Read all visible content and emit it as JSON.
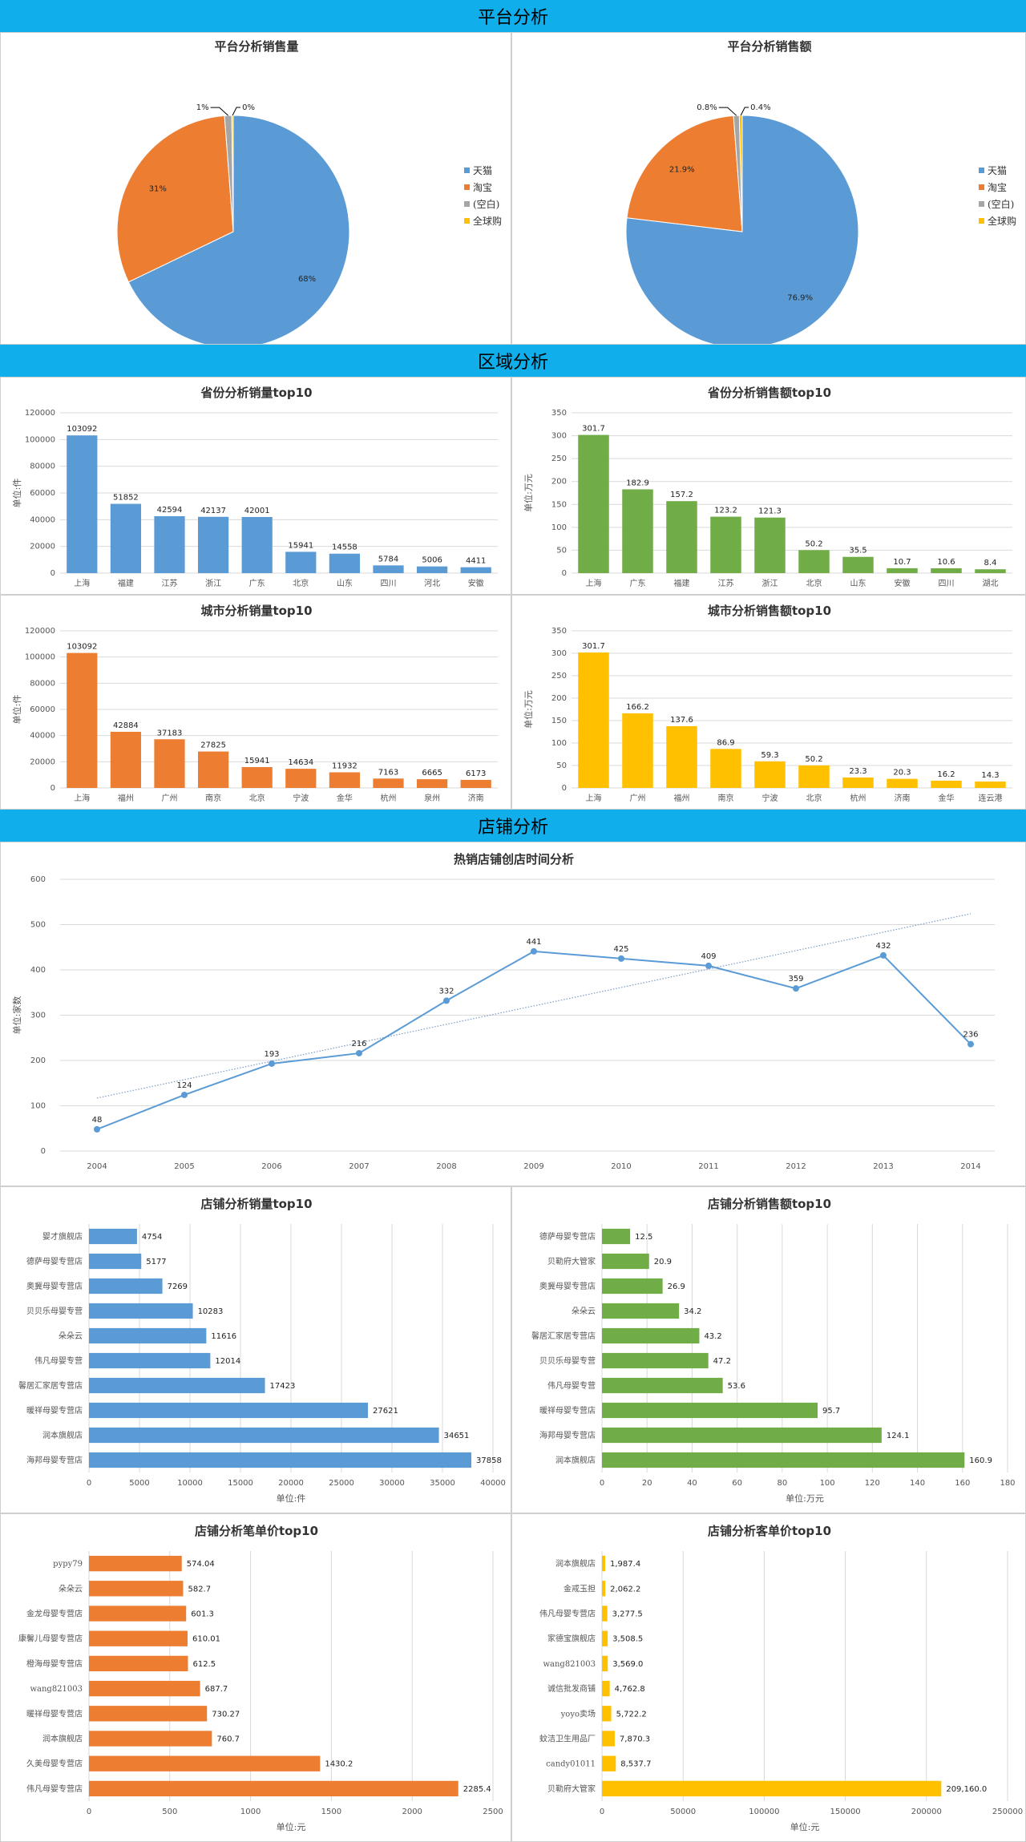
{
  "sections": {
    "platform": "平台分析",
    "region": "区域分析",
    "shop": "店铺分析"
  },
  "colors": {
    "blue": "#5b9bd5",
    "orange": "#ed7d31",
    "gray": "#a5a5a5",
    "yellow": "#ffc000",
    "green": "#70ad47",
    "banner": "#10aeea"
  },
  "chart_data": [
    {
      "id": "pie_qty",
      "type": "pie",
      "title": "平台分析销售量",
      "labels": [
        "天猫",
        "淘宝",
        "(空白)",
        "全球购"
      ],
      "values": [
        68,
        31,
        1,
        0.2
      ],
      "data_labels": [
        "68%",
        "31%",
        "1%",
        "0%"
      ],
      "colors": [
        "#5b9bd5",
        "#ed7d31",
        "#a5a5a5",
        "#ffc000"
      ]
    },
    {
      "id": "pie_amt",
      "type": "pie",
      "title": "平台分析销售额",
      "labels": [
        "天猫",
        "淘宝",
        "(空白)",
        "全球购"
      ],
      "values": [
        76.9,
        21.9,
        0.8,
        0.4
      ],
      "data_labels": [
        "76.9%",
        "21.9%",
        "0.8%",
        "0.4%"
      ],
      "colors": [
        "#5b9bd5",
        "#ed7d31",
        "#a5a5a5",
        "#ffc000"
      ]
    },
    {
      "id": "prov_qty",
      "type": "bar",
      "title": "省份分析销量top10",
      "ylabel": "单位:件",
      "categories": [
        "上海",
        "福建",
        "江苏",
        "浙江",
        "广东",
        "北京",
        "山东",
        "四川",
        "河北",
        "安徽"
      ],
      "values": [
        103092,
        51852,
        42594,
        42137,
        42001,
        15941,
        14558,
        5784,
        5006,
        4411
      ],
      "labels": [
        "103092",
        "51852",
        "42594",
        "42137",
        "42001",
        "15941",
        "14558",
        "5784",
        "5006",
        "4411"
      ],
      "ylim": [
        0,
        120000
      ],
      "ystep": 20000,
      "color": "#5b9bd5"
    },
    {
      "id": "prov_amt",
      "type": "bar",
      "title": "省份分析销售额top10",
      "ylabel": "单位:万元",
      "categories": [
        "上海",
        "广东",
        "福建",
        "江苏",
        "浙江",
        "北京",
        "山东",
        "安徽",
        "四川",
        "湖北"
      ],
      "values": [
        301.7,
        182.9,
        157.2,
        123.2,
        121.3,
        50.2,
        35.5,
        10.7,
        10.6,
        8.4
      ],
      "labels": [
        "301.7",
        "182.9",
        "157.2",
        "123.2",
        "121.3",
        "50.2",
        "35.5",
        "10.7",
        "10.6",
        "8.4"
      ],
      "ylim": [
        0,
        350
      ],
      "ystep": 50,
      "color": "#70ad47"
    },
    {
      "id": "city_qty",
      "type": "bar",
      "title": "城市分析销量top10",
      "ylabel": "单位:件",
      "categories": [
        "上海",
        "福州",
        "广州",
        "南京",
        "北京",
        "宁波",
        "金华",
        "杭州",
        "泉州",
        "济南"
      ],
      "values": [
        103092,
        42884,
        37183,
        27825,
        15941,
        14634,
        11932,
        7163,
        6665,
        6173
      ],
      "labels": [
        "103092",
        "42884",
        "37183",
        "27825",
        "15941",
        "14634",
        "11932",
        "7163",
        "6665",
        "6173"
      ],
      "ylim": [
        0,
        120000
      ],
      "ystep": 20000,
      "color": "#ed7d31"
    },
    {
      "id": "city_amt",
      "type": "bar",
      "title": "城市分析销售额top10",
      "ylabel": "单位:万元",
      "categories": [
        "上海",
        "广州",
        "福州",
        "南京",
        "宁波",
        "北京",
        "杭州",
        "济南",
        "金华",
        "连云港"
      ],
      "values": [
        301.7,
        166.2,
        137.6,
        86.9,
        59.3,
        50.2,
        23.3,
        20.3,
        16.2,
        14.3
      ],
      "labels": [
        "301.7",
        "166.2",
        "137.6",
        "86.9",
        "59.3",
        "50.2",
        "23.3",
        "20.3",
        "16.2",
        "14.3"
      ],
      "ylim": [
        0,
        350
      ],
      "ystep": 50,
      "color": "#ffc000"
    },
    {
      "id": "shop_time",
      "type": "line",
      "title": "热销店铺创店时间分析",
      "ylabel": "单位:家数",
      "x": [
        "2004",
        "2005",
        "2006",
        "2007",
        "2008",
        "2009",
        "2010",
        "2011",
        "2012",
        "2013",
        "2014"
      ],
      "values": [
        48,
        124,
        193,
        216,
        332,
        441,
        425,
        409,
        359,
        432,
        236
      ],
      "labels": [
        "48",
        "124",
        "193",
        "216",
        "332",
        "441",
        "425",
        "409",
        "359",
        "432",
        "236"
      ],
      "trendline": [
        117,
        524
      ],
      "ylim": [
        0,
        600
      ],
      "ystep": 100,
      "color": "#5b9bd5"
    },
    {
      "id": "shop_qty",
      "type": "hbar",
      "title": "店铺分析销量top10",
      "xlabel": "单位:件",
      "categories": [
        "婴才旗舰店",
        "德萨母婴专营店",
        "奥冀母婴专营店",
        "贝贝乐母婴专营",
        "朵朵云",
        "伟凡母婴专营",
        "馨居汇家居专营店",
        "暖祥母婴专营店",
        "润本旗舰店",
        "海邦母婴专营店"
      ],
      "values": [
        4754,
        5177,
        7269,
        10283,
        11616,
        12014,
        17423,
        27621,
        34651,
        37858
      ],
      "labels": [
        "4754",
        "5177",
        "7269",
        "10283",
        "11616",
        "12014",
        "17423",
        "27621",
        "34651",
        "37858"
      ],
      "xticks": [
        "0",
        "5000",
        "10000",
        "15000",
        "20000",
        "25000",
        "30000",
        "35000",
        "40000"
      ],
      "xlim": [
        0,
        40000
      ],
      "xstep": 5000,
      "color": "#5b9bd5"
    },
    {
      "id": "shop_amt",
      "type": "hbar",
      "title": "店铺分析销售额top10",
      "xlabel": "单位:万元",
      "categories": [
        "德萨母婴专营店",
        "贝勒府大管家",
        "奥冀母婴专营店",
        "朵朵云",
        "馨居汇家居专营店",
        "贝贝乐母婴专营",
        "伟凡母婴专营",
        "暖祥母婴专营店",
        "海邦母婴专营店",
        "润本旗舰店"
      ],
      "values": [
        12.5,
        20.9,
        26.9,
        34.2,
        43.2,
        47.2,
        53.6,
        95.7,
        124.1,
        160.9
      ],
      "labels": [
        "12.5",
        "20.9",
        "26.9",
        "34.2",
        "43.2",
        "47.2",
        "53.6",
        "95.7",
        "124.1",
        "160.9"
      ],
      "xticks": [
        "0",
        "20",
        "40",
        "60",
        "80",
        "100",
        "120",
        "140",
        "160",
        "180"
      ],
      "xlim": [
        0,
        180
      ],
      "xstep": 20,
      "color": "#70ad47"
    },
    {
      "id": "shop_order",
      "type": "hbar",
      "title": "店铺分析笔单价top10",
      "xlabel": "单位:元",
      "categories": [
        "pypy79",
        "朵朵云",
        "金龙母婴专营店",
        "康馨儿母婴专营店",
        "橙海母婴专营店",
        "wang821003",
        "暖祥母婴专营店",
        "润本旗舰店",
        "久美母婴专营店",
        "伟凡母婴专营店"
      ],
      "values": [
        574.04,
        582.7,
        601.3,
        610.01,
        612.5,
        687.7,
        730.27,
        760.7,
        1430.2,
        2285.4
      ],
      "labels": [
        "574.04",
        "582.7",
        "601.3",
        "610.01",
        "612.5",
        "687.7",
        "730.27",
        "760.7",
        "1430.2",
        "2285.4"
      ],
      "xticks": [
        "0",
        "500",
        "1000",
        "1500",
        "2000",
        "2500"
      ],
      "xlim": [
        0,
        2500
      ],
      "xstep": 500,
      "color": "#ed7d31"
    },
    {
      "id": "shop_cust",
      "type": "hbar",
      "title": "店铺分析客单价top10",
      "xlabel": "单位:元",
      "categories": [
        "润本旗舰店",
        "金戒玉担",
        "伟凡母婴专营店",
        "家德宝旗舰店",
        "wang821003",
        "诚信批发商铺",
        "yoyo卖场",
        "蚊洁卫生用品厂",
        "candy01011",
        "贝勒府大管家"
      ],
      "values": [
        1987.4,
        2062.2,
        3277.5,
        3508.5,
        3569.0,
        4762.8,
        5722.2,
        7870.3,
        8537.7,
        209160.0
      ],
      "labels": [
        "1,987.4",
        "2,062.2",
        "3,277.5",
        "3,508.5",
        "3,569.0",
        "4,762.8",
        "5,722.2",
        "7,870.3",
        "8,537.7",
        "209,160.0"
      ],
      "xticks": [
        "0",
        "50000",
        "100000",
        "150000",
        "200000",
        "250000"
      ],
      "xlim": [
        0,
        250000
      ],
      "xstep": 50000,
      "color": "#ffc000"
    }
  ]
}
